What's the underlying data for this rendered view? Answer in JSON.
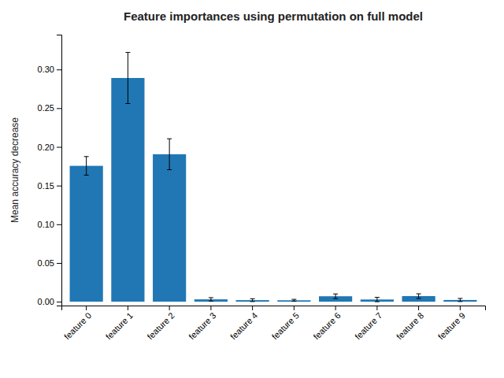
{
  "chart_data": {
    "type": "bar",
    "title": "Feature importances using permutation on full model",
    "ylabel": "Mean accuracy decrease",
    "categories": [
      "feature 0",
      "feature 1",
      "feature 2",
      "feature 3",
      "feature 4",
      "feature 5",
      "feature 6",
      "feature 7",
      "feature 8",
      "feature 9"
    ],
    "values": [
      0.1755,
      0.289,
      0.1905,
      0.003,
      0.002,
      0.0018,
      0.007,
      0.0028,
      0.0072,
      0.0022
    ],
    "errors": [
      0.012,
      0.033,
      0.02,
      0.0022,
      0.0018,
      0.0012,
      0.003,
      0.0028,
      0.003,
      0.002
    ],
    "color": "#2077b4",
    "ylim": [
      -0.005,
      0.345
    ],
    "yticks": [
      {
        "value": 0,
        "label": "0.00"
      },
      {
        "value": 0.05,
        "label": "0.05"
      },
      {
        "value": 0.1,
        "label": "0.10"
      },
      {
        "value": 0.15,
        "label": "0.15"
      },
      {
        "value": 0.2,
        "label": "0.20"
      },
      {
        "value": 0.25,
        "label": "0.25"
      },
      {
        "value": 0.3,
        "label": "0.30"
      }
    ],
    "grid": false
  }
}
